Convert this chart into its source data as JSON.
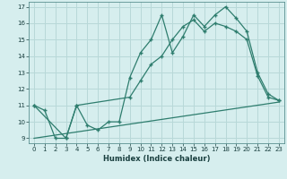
{
  "xlabel": "Humidex (Indice chaleur)",
  "bg_color": "#d6eeee",
  "grid_color": "#b8d8d8",
  "line_color": "#2e7d6e",
  "xlim": [
    -0.5,
    23.5
  ],
  "ylim": [
    8.7,
    17.3
  ],
  "yticks": [
    9,
    10,
    11,
    12,
    13,
    14,
    15,
    16,
    17
  ],
  "xticks": [
    0,
    1,
    2,
    3,
    4,
    5,
    6,
    7,
    8,
    9,
    10,
    11,
    12,
    13,
    14,
    15,
    16,
    17,
    18,
    19,
    20,
    21,
    22,
    23
  ],
  "series1_x": [
    0,
    1,
    2,
    3,
    4,
    5,
    6,
    7,
    8,
    9,
    10,
    11,
    12,
    13,
    14,
    15,
    16,
    17,
    18,
    19,
    20,
    21,
    22,
    23
  ],
  "series1_y": [
    11.0,
    10.7,
    9.0,
    9.0,
    11.0,
    9.8,
    9.5,
    10.0,
    10.0,
    12.7,
    14.2,
    15.0,
    16.5,
    14.2,
    15.2,
    16.5,
    15.8,
    16.5,
    17.0,
    16.3,
    15.5,
    13.0,
    11.7,
    11.3
  ],
  "series2_x": [
    0,
    3,
    4,
    9,
    10,
    11,
    12,
    13,
    14,
    15,
    16,
    17,
    18,
    19,
    20,
    21,
    22,
    23
  ],
  "series2_y": [
    11.0,
    9.0,
    11.0,
    11.5,
    12.5,
    13.5,
    14.0,
    15.0,
    15.8,
    16.2,
    15.5,
    16.0,
    15.8,
    15.5,
    15.0,
    12.8,
    11.5,
    11.3
  ],
  "series3_x": [
    0,
    23
  ],
  "series3_y": [
    9.0,
    11.2
  ]
}
